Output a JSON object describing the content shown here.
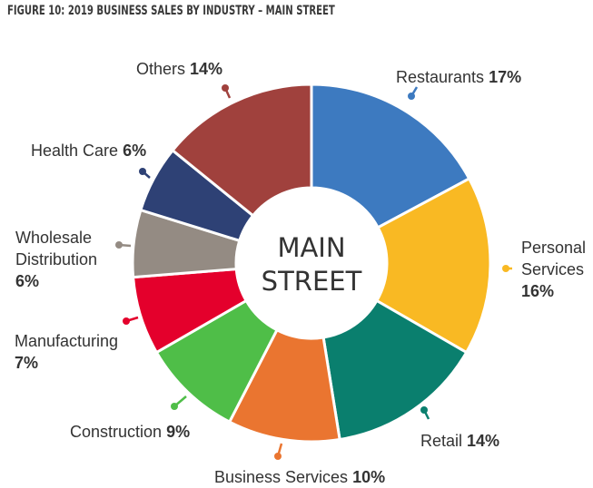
{
  "figure_title": "FIGURE 10: 2019 BUSINESS SALES BY INDUSTRY – MAIN STREET",
  "chart_data": {
    "type": "pie",
    "title": "FIGURE 10: 2019 BUSINESS SALES BY INDUSTRY – MAIN STREET",
    "center_label": [
      "MAIN",
      "STREET"
    ],
    "unit": "%",
    "slices": [
      {
        "label": "Restaurants",
        "value": 17,
        "pct_text": "17%",
        "color": "#3d7ac0",
        "label_lines": [
          "Restaurants"
        ],
        "pct_inline": true
      },
      {
        "label": "Personal Services",
        "value": 16,
        "pct_text": "16%",
        "color": "#f9b923",
        "label_lines": [
          "Personal",
          "Services"
        ],
        "pct_inline": false
      },
      {
        "label": "Retail",
        "value": 14,
        "pct_text": "14%",
        "color": "#0a7f6e",
        "label_lines": [
          "Retail"
        ],
        "pct_inline": true
      },
      {
        "label": "Business Services",
        "value": 10,
        "pct_text": "10%",
        "color": "#ea7530",
        "label_lines": [
          "Business Services"
        ],
        "pct_inline": true
      },
      {
        "label": "Construction",
        "value": 9,
        "pct_text": "9%",
        "color": "#4fbe48",
        "label_lines": [
          "Construction"
        ],
        "pct_inline": true
      },
      {
        "label": "Manufacturing",
        "value": 7,
        "pct_text": "7%",
        "color": "#e4002c",
        "label_lines": [
          "Manufacturing"
        ],
        "pct_inline": false
      },
      {
        "label": "Wholesale Distribution",
        "value": 6,
        "pct_text": "6%",
        "color": "#948b83",
        "label_lines": [
          "Wholesale",
          "Distribution"
        ],
        "pct_inline": false
      },
      {
        "label": "Health Care",
        "value": 6,
        "pct_text": "6%",
        "color": "#2e4175",
        "label_lines": [
          "Health Care"
        ],
        "pct_inline": true
      },
      {
        "label": "Others",
        "value": 14,
        "pct_text": "14%",
        "color": "#a0413d",
        "label_lines": [
          "Others"
        ],
        "pct_inline": true
      }
    ]
  }
}
